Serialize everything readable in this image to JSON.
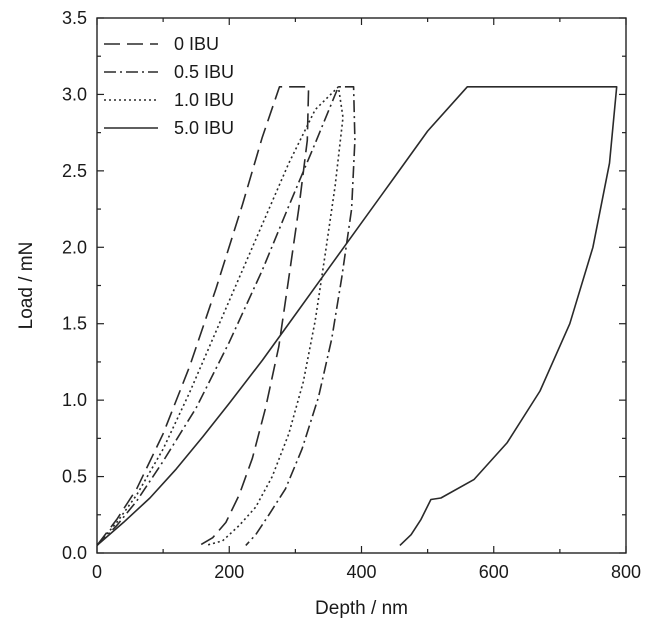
{
  "chart_data": {
    "type": "line",
    "xlabel": "Depth / nm",
    "ylabel": "Load / mN",
    "xlim": [
      0,
      800
    ],
    "ylim": [
      0,
      3.5
    ],
    "xticks": [
      0,
      200,
      400,
      600,
      800
    ],
    "xtick_labels": [
      "0",
      "200",
      "400",
      "600",
      "800"
    ],
    "yticks": [
      0.0,
      0.5,
      1.0,
      1.5,
      2.0,
      2.5,
      3.0,
      3.5
    ],
    "ytick_labels": [
      "0.0",
      "0.5",
      "1.0",
      "1.5",
      "2.0",
      "2.5",
      "3.0",
      "3.5"
    ],
    "grid": false,
    "legend_position": "top-left",
    "series": [
      {
        "name": "0 IBU",
        "dash": "dashed",
        "x": [
          0,
          30,
          60,
          100,
          140,
          180,
          220,
          250,
          276,
          320,
          318,
          305,
          290,
          275,
          255,
          235,
          215,
          195,
          175,
          155
        ],
        "y": [
          0.05,
          0.22,
          0.42,
          0.78,
          1.22,
          1.73,
          2.28,
          2.72,
          3.05,
          3.05,
          2.7,
          2.25,
          1.8,
          1.35,
          0.95,
          0.62,
          0.38,
          0.2,
          0.1,
          0.05
        ]
      },
      {
        "name": "0.5 IBU",
        "dash": "dash-dot",
        "x": [
          0,
          30,
          60,
          100,
          150,
          200,
          250,
          290,
          330,
          365,
          388,
          390,
          385,
          370,
          355,
          335,
          310,
          285,
          260,
          240,
          225
        ],
        "y": [
          0.05,
          0.18,
          0.34,
          0.6,
          0.95,
          1.38,
          1.85,
          2.27,
          2.68,
          3.05,
          3.05,
          2.7,
          2.25,
          1.8,
          1.4,
          1.02,
          0.68,
          0.42,
          0.25,
          0.12,
          0.05
        ]
      },
      {
        "name": "1.0 IBU",
        "dash": "dotted",
        "x": [
          0,
          30,
          60,
          100,
          140,
          190,
          240,
          290,
          330,
          365,
          372,
          360,
          345,
          330,
          312,
          290,
          265,
          240,
          215,
          190,
          165
        ],
        "y": [
          0.05,
          0.2,
          0.38,
          0.68,
          1.05,
          1.55,
          2.05,
          2.55,
          2.9,
          3.05,
          2.85,
          2.4,
          1.95,
          1.52,
          1.12,
          0.78,
          0.5,
          0.3,
          0.18,
          0.08,
          0.05
        ]
      },
      {
        "name": "5.0 IBU",
        "dash": "solid",
        "x": [
          0,
          40,
          80,
          120,
          160,
          200,
          250,
          300,
          350,
          400,
          450,
          500,
          560,
          620,
          700,
          786,
          775,
          750,
          715,
          670,
          620,
          570,
          520,
          505,
          490,
          475,
          458
        ],
        "y": [
          0.05,
          0.2,
          0.36,
          0.55,
          0.76,
          0.98,
          1.26,
          1.56,
          1.86,
          2.16,
          2.46,
          2.76,
          3.05,
          3.05,
          3.05,
          3.05,
          2.55,
          2.0,
          1.5,
          1.06,
          0.72,
          0.48,
          0.36,
          0.35,
          0.22,
          0.12,
          0.05
        ]
      }
    ]
  }
}
